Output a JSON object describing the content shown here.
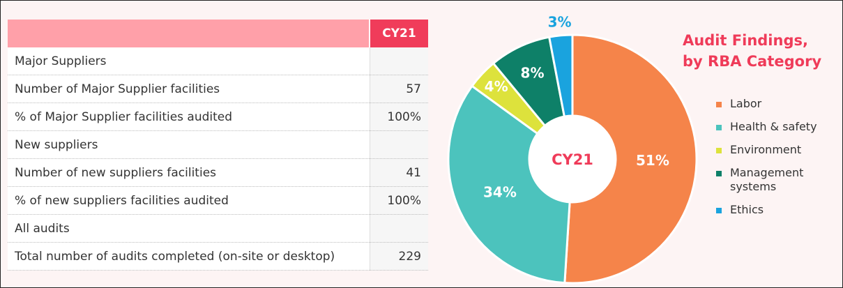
{
  "table": {
    "header": {
      "column": "CY21"
    },
    "rows": [
      {
        "label": "Major Suppliers"
      },
      {
        "label": "Number of Major Supplier facilities",
        "value": "57"
      },
      {
        "label": "% of Major Supplier facilities audited",
        "value": "100%"
      },
      {
        "label": "New suppliers"
      },
      {
        "label": "Number of new suppliers facilities",
        "value": "41"
      },
      {
        "label": "% of new suppliers facilities audited",
        "value": "100%"
      },
      {
        "label": "All audits"
      },
      {
        "label": "Total number of audits completed (on-site or desktop)",
        "value": "229"
      }
    ]
  },
  "chart_data": {
    "type": "donut",
    "title": "Audit Findings, by RBA Category",
    "center_label": "CY21",
    "categories": [
      "Labor",
      "Health & safety",
      "Environment",
      "Management systems",
      "Ethics"
    ],
    "values": [
      51,
      34,
      4,
      8,
      3
    ],
    "value_labels": [
      "51%",
      "34%",
      "4%",
      "8%",
      "3%"
    ],
    "colors": [
      "#f5844a",
      "#4cc3bd",
      "#dde23c",
      "#0e8068",
      "#1aa3de"
    ]
  }
}
